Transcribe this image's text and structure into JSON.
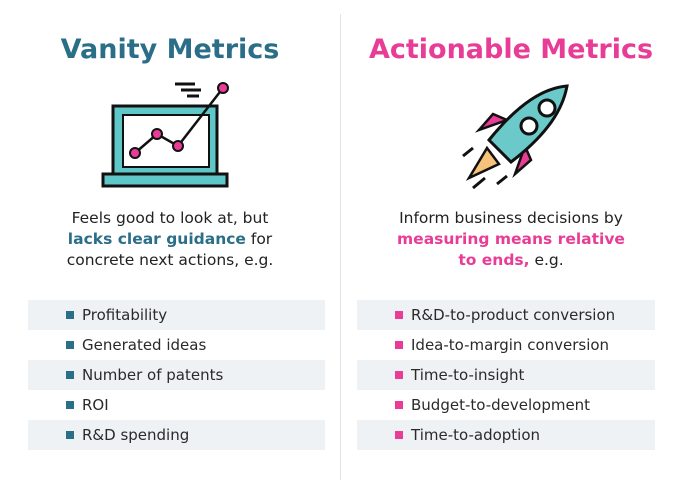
{
  "left": {
    "title": "Vanity Metrics",
    "description": [
      [
        {
          "text": "Feels good to look at, but",
          "emphasis": false
        }
      ],
      [
        {
          "text": "lacks clear guidance",
          "emphasis": true
        },
        {
          "text": " for",
          "emphasis": false
        }
      ],
      [
        {
          "text": "concrete next actions, e.g.",
          "emphasis": false
        }
      ]
    ],
    "items": [
      "Profitability",
      "Generated ideas",
      "Number of patents",
      "ROI",
      "R&D spending"
    ],
    "color": "#2b6e88"
  },
  "right": {
    "title": "Actionable Metrics",
    "description": [
      [
        {
          "text": "Inform business decisions by",
          "emphasis": false
        }
      ],
      [
        {
          "text": "measuring means relative",
          "emphasis": true
        }
      ],
      [
        {
          "text": "to ends,",
          "emphasis": true
        },
        {
          "text": " e.g.",
          "emphasis": false
        }
      ]
    ],
    "items": [
      "R&D-to-product conversion",
      "Idea-to-margin conversion",
      "Time-to-insight",
      "Budget-to-development",
      "Time-to-adoption"
    ],
    "color": "#e83c96"
  }
}
